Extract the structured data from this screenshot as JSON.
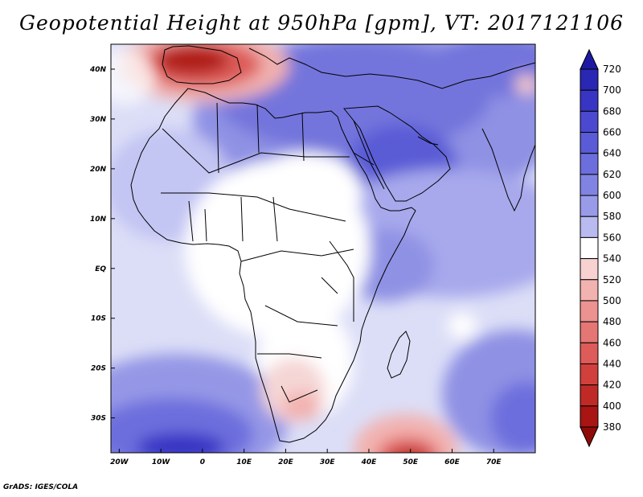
{
  "title": "Geopotential Height at 950hPa [gpm], VT: 2017121106",
  "footer": "GrADS: IGES/COLA",
  "map": {
    "lat_labels": [
      "40N",
      "30N",
      "20N",
      "10N",
      "EQ",
      "10S",
      "20S",
      "30S"
    ],
    "lon_labels": [
      "20W",
      "10W",
      "0",
      "10E",
      "20E",
      "30E",
      "40E",
      "50E",
      "60E",
      "70E"
    ],
    "lon_range": [
      -22,
      80
    ],
    "lat_range": [
      -37,
      45
    ]
  },
  "colorbar": {
    "levels": [
      720,
      700,
      680,
      660,
      640,
      620,
      600,
      580,
      560,
      540,
      520,
      500,
      480,
      460,
      440,
      420,
      400,
      380
    ],
    "colors": [
      "#1e19a3",
      "#2a27b4",
      "#3835c4",
      "#4a49d0",
      "#5a5bd6",
      "#6d6edd",
      "#8183e3",
      "#999be9",
      "#b8baf0",
      "#ffffff",
      "#f8d2d0",
      "#f2b2b0",
      "#ec9290",
      "#e47674",
      "#dd5b58",
      "#d1403c",
      "#c02a26",
      "#a81512",
      "#8f0b08"
    ]
  }
}
